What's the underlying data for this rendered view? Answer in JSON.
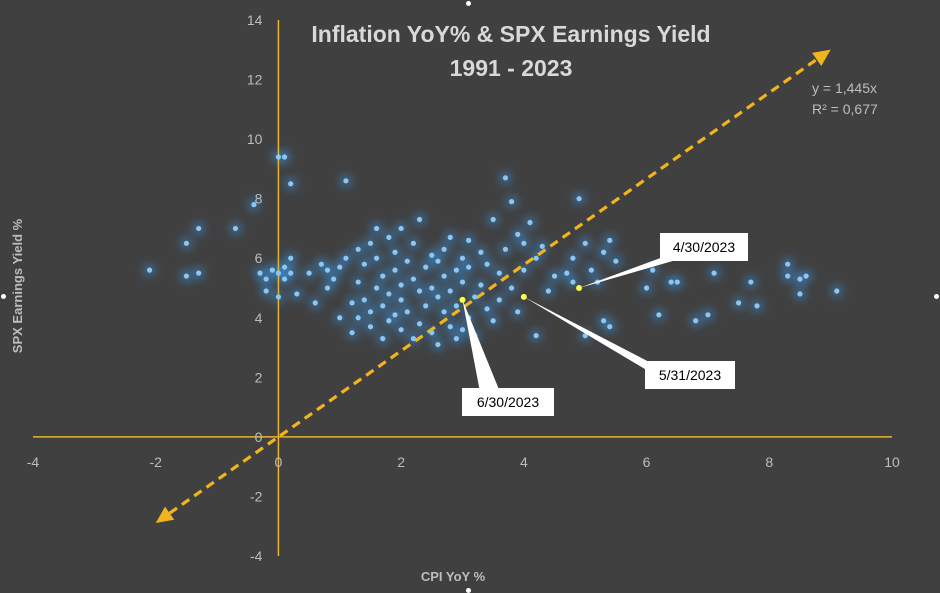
{
  "chart_data": {
    "type": "scatter",
    "title": "Inflation YoY% & SPX Earnings Yield",
    "subtitle": "1991 - 2023",
    "xlabel": "CPI YoY %",
    "ylabel": "SPX  Earnings Yield %",
    "xlim": [
      -4,
      10
    ],
    "ylim": [
      -4,
      14
    ],
    "x_ticks": [
      "-4",
      "-2",
      "0",
      "2",
      "4",
      "6",
      "8",
      "10"
    ],
    "y_ticks": [
      "-4",
      "-2",
      "0",
      "2",
      "4",
      "6",
      "8",
      "10",
      "12",
      "14"
    ],
    "grid": false,
    "legend": "none",
    "trendline": {
      "slope": 1.445,
      "equation": "y = 1,445x",
      "r_squared": "R² = 0,677",
      "x_range": [
        -2,
        9
      ]
    },
    "annotations": [
      {
        "label": "4/30/2023",
        "x": 4.9,
        "y": 5.0
      },
      {
        "label": "5/31/2023",
        "x": 4.0,
        "y": 4.7
      },
      {
        "label": "6/30/2023",
        "x": 3.0,
        "y": 4.6
      }
    ],
    "colors": {
      "background": "#404040",
      "axis": "#e6b42e",
      "trendline": "#f2b41c",
      "points": "#8cc6f2",
      "glow": "#3b8fd8",
      "highlight": "#ffff4d"
    },
    "points": [
      [
        -2.1,
        5.6
      ],
      [
        -1.5,
        5.4
      ],
      [
        -1.5,
        6.5
      ],
      [
        -1.3,
        5.5
      ],
      [
        -1.3,
        7.0
      ],
      [
        -0.7,
        7.0
      ],
      [
        -0.4,
        7.8
      ],
      [
        -0.3,
        5.5
      ],
      [
        -0.2,
        4.9
      ],
      [
        -0.2,
        5.3
      ],
      [
        -0.1,
        5.6
      ],
      [
        0.0,
        9.4
      ],
      [
        0.1,
        9.4
      ],
      [
        0.0,
        5.5
      ],
      [
        0.0,
        4.7
      ],
      [
        0.1,
        5.3
      ],
      [
        0.1,
        5.7
      ],
      [
        0.2,
        5.5
      ],
      [
        0.2,
        6.0
      ],
      [
        0.2,
        8.5
      ],
      [
        0.3,
        4.8
      ],
      [
        0.5,
        5.5
      ],
      [
        0.6,
        4.5
      ],
      [
        0.7,
        5.8
      ],
      [
        0.8,
        5.6
      ],
      [
        0.8,
        5.0
      ],
      [
        0.9,
        5.3
      ],
      [
        1.0,
        4.0
      ],
      [
        1.0,
        5.7
      ],
      [
        1.1,
        6.0
      ],
      [
        1.1,
        8.6
      ],
      [
        1.2,
        4.5
      ],
      [
        1.2,
        3.5
      ],
      [
        1.3,
        4.0
      ],
      [
        1.3,
        5.2
      ],
      [
        1.3,
        6.3
      ],
      [
        1.4,
        4.6
      ],
      [
        1.4,
        5.8
      ],
      [
        1.5,
        3.7
      ],
      [
        1.5,
        4.2
      ],
      [
        1.5,
        6.5
      ],
      [
        1.6,
        5.0
      ],
      [
        1.6,
        6.0
      ],
      [
        1.6,
        7.0
      ],
      [
        1.7,
        4.4
      ],
      [
        1.7,
        5.4
      ],
      [
        1.7,
        3.3
      ],
      [
        1.8,
        4.8
      ],
      [
        1.8,
        6.7
      ],
      [
        1.8,
        3.9
      ],
      [
        1.9,
        5.6
      ],
      [
        1.9,
        4.1
      ],
      [
        1.9,
        6.2
      ],
      [
        2.0,
        3.6
      ],
      [
        2.0,
        5.1
      ],
      [
        2.0,
        7.0
      ],
      [
        2.0,
        4.6
      ],
      [
        2.1,
        5.9
      ],
      [
        2.1,
        4.2
      ],
      [
        2.2,
        3.3
      ],
      [
        2.2,
        5.3
      ],
      [
        2.2,
        6.5
      ],
      [
        2.3,
        4.9
      ],
      [
        2.3,
        3.8
      ],
      [
        2.3,
        7.3
      ],
      [
        2.4,
        5.7
      ],
      [
        2.4,
        4.4
      ],
      [
        2.5,
        6.1
      ],
      [
        2.5,
        3.5
      ],
      [
        2.5,
        5.0
      ],
      [
        2.6,
        4.7
      ],
      [
        2.6,
        5.9
      ],
      [
        2.6,
        3.1
      ],
      [
        2.7,
        6.3
      ],
      [
        2.7,
        4.2
      ],
      [
        2.7,
        5.4
      ],
      [
        2.8,
        3.7
      ],
      [
        2.8,
        4.9
      ],
      [
        2.8,
        6.7
      ],
      [
        2.9,
        5.6
      ],
      [
        2.9,
        3.3
      ],
      [
        2.9,
        4.4
      ],
      [
        3.0,
        6.0
      ],
      [
        3.0,
        3.6
      ],
      [
        3.0,
        5.2
      ],
      [
        3.1,
        6.6
      ],
      [
        3.1,
        4.0
      ],
      [
        3.1,
        5.7
      ],
      [
        3.2,
        4.7
      ],
      [
        3.2,
        3.4
      ],
      [
        3.3,
        6.2
      ],
      [
        3.3,
        5.1
      ],
      [
        3.4,
        4.3
      ],
      [
        3.4,
        5.8
      ],
      [
        3.5,
        7.3
      ],
      [
        3.5,
        3.9
      ],
      [
        3.6,
        5.5
      ],
      [
        3.6,
        4.6
      ],
      [
        3.7,
        8.7
      ],
      [
        3.7,
        6.3
      ],
      [
        3.8,
        5.0
      ],
      [
        3.8,
        7.9
      ],
      [
        3.9,
        6.8
      ],
      [
        3.9,
        4.2
      ],
      [
        4.0,
        6.5
      ],
      [
        4.0,
        5.6
      ],
      [
        4.1,
        7.2
      ],
      [
        4.2,
        6.0
      ],
      [
        4.2,
        3.4
      ],
      [
        4.3,
        6.4
      ],
      [
        4.4,
        4.9
      ],
      [
        4.5,
        5.4
      ],
      [
        4.7,
        5.5
      ],
      [
        4.8,
        6.0
      ],
      [
        4.8,
        5.2
      ],
      [
        4.9,
        8.0
      ],
      [
        5.0,
        6.5
      ],
      [
        5.0,
        3.4
      ],
      [
        5.1,
        5.6
      ],
      [
        5.2,
        5.2
      ],
      [
        5.3,
        3.9
      ],
      [
        5.3,
        6.2
      ],
      [
        5.4,
        3.7
      ],
      [
        5.4,
        6.6
      ],
      [
        5.5,
        5.9
      ],
      [
        6.0,
        5.0
      ],
      [
        6.1,
        5.6
      ],
      [
        6.2,
        4.1
      ],
      [
        6.4,
        5.2
      ],
      [
        6.5,
        5.2
      ],
      [
        6.8,
        3.9
      ],
      [
        7.0,
        4.1
      ],
      [
        7.1,
        5.5
      ],
      [
        7.5,
        4.5
      ],
      [
        7.7,
        5.2
      ],
      [
        7.8,
        4.4
      ],
      [
        8.3,
        5.4
      ],
      [
        8.3,
        5.8
      ],
      [
        8.5,
        5.3
      ],
      [
        8.5,
        4.8
      ],
      [
        8.6,
        5.4
      ],
      [
        9.1,
        4.9
      ]
    ]
  }
}
